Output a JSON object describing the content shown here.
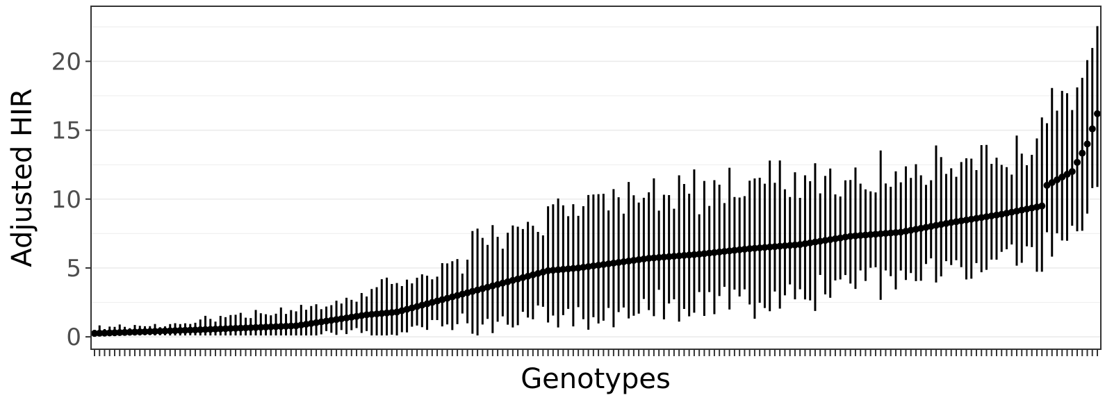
{
  "chart_data": {
    "type": "scatter",
    "subtype": "point-with-errorbars",
    "xlabel": "Genotypes",
    "ylabel": "Adjusted HIR",
    "ylim": [
      -0.9,
      24.0
    ],
    "yticks": [
      "0",
      "5",
      "10",
      "15",
      "20"
    ],
    "ytick_values": [
      0,
      5,
      10,
      15,
      20
    ],
    "x_tick_labels_shown": false,
    "grid": "horizontal major and minor lines",
    "legend": "none",
    "n_genotypes": 200,
    "point_color": "#000000",
    "errorbar_color": "#000000",
    "description_of_values": "Each genotype has a point estimate (y) with a vertical error bar (lower, upper); genotypes ordered by increasing estimate.",
    "series": [
      {
        "anchors_index": [
          0,
          20,
          40,
          54,
          60,
          66,
          74,
          80,
          90,
          96,
          100,
          110,
          120,
          130,
          140,
          150,
          160,
          170,
          180,
          188,
          189,
          194,
          197,
          199
        ],
        "anchors_y": [
          0.25,
          0.5,
          0.8,
          1.6,
          1.8,
          2.4,
          3.2,
          3.8,
          4.8,
          5.0,
          5.2,
          5.7,
          6.0,
          6.4,
          6.7,
          7.3,
          7.6,
          8.3,
          8.9,
          9.5,
          11.0,
          12.0,
          14.0,
          16.2
        ]
      }
    ]
  }
}
